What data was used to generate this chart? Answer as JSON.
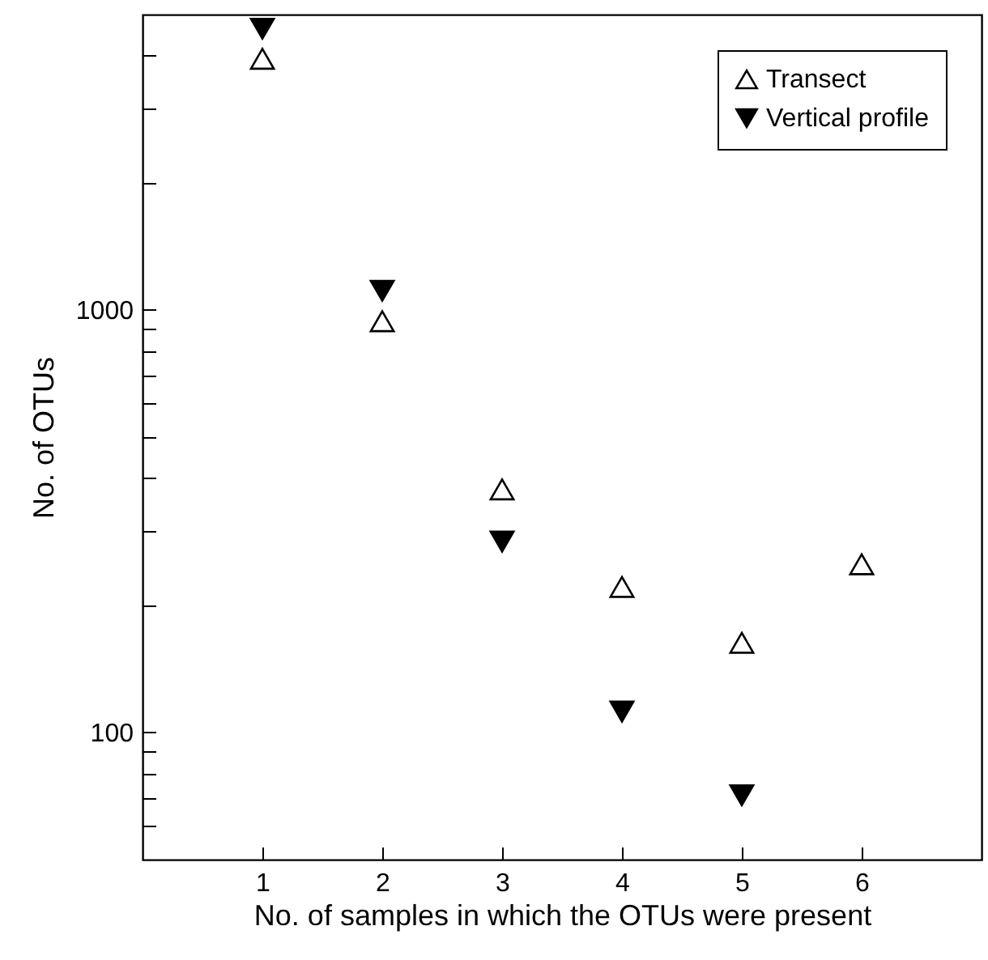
{
  "chart_data": {
    "type": "scatter",
    "xlabel": "No. of samples in which the OTUs were present",
    "ylabel": "No. of OTUs",
    "x": [
      1,
      2,
      3,
      4,
      5,
      6
    ],
    "log": "y",
    "xlim": [
      0,
      7
    ],
    "xticks": [
      1,
      2,
      3,
      4,
      5,
      6
    ],
    "ylim": [
      50,
      5000
    ],
    "yticks": [
      {
        "value": 60,
        "label": null
      },
      {
        "value": 70,
        "label": null
      },
      {
        "value": 80,
        "label": null
      },
      {
        "value": 90,
        "label": null
      },
      100,
      {
        "value": 200,
        "label": null
      },
      {
        "value": 300,
        "label": null
      },
      {
        "value": 400,
        "label": null
      },
      {
        "value": 500,
        "label": null
      },
      {
        "value": 600,
        "label": null
      },
      {
        "value": 700,
        "label": null
      },
      {
        "value": 800,
        "label": null
      },
      {
        "value": 900,
        "label": null
      },
      1000,
      {
        "value": 2000,
        "label": null
      },
      {
        "value": 3000,
        "label": null
      },
      {
        "value": 4000,
        "label": null
      }
    ],
    "grid": false,
    "legend": "top right",
    "series": [
      {
        "name": "Transect",
        "color": "#000000",
        "marker": "triangle",
        "values": [
          3930,
          940,
          376,
          221,
          163,
          250
        ]
      },
      {
        "name": "Vertical profile",
        "color": "#000000",
        "marker": "triangle-down",
        "x": [
          1,
          2,
          3,
          4,
          5
        ],
        "values": [
          4630,
          1110,
          283,
          112,
          71
        ]
      }
    ]
  }
}
